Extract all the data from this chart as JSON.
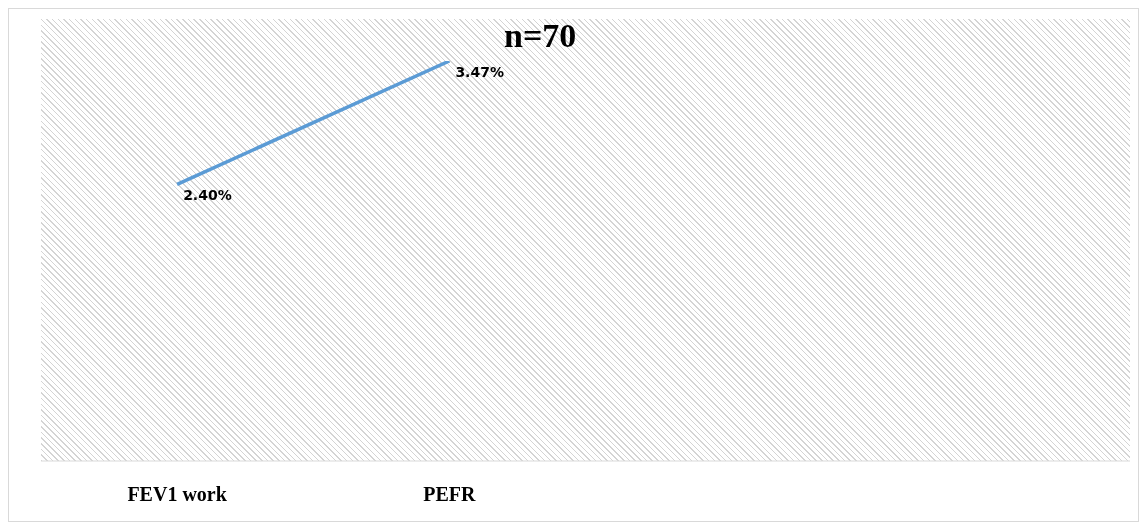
{
  "chart_data": {
    "type": "line",
    "categories": [
      "FEV1 work",
      "PEFR",
      null,
      null
    ],
    "series": [
      {
        "color": "#5b9bd5",
        "values": [
          2.4,
          3.47,
          null,
          null
        ],
        "value_labels": [
          "2.40%",
          "3.47%",
          null,
          null
        ]
      }
    ],
    "tick_labels": "x",
    "marker": "none",
    "line_style": "solid",
    "annotations": [
      "n=70"
    ]
  }
}
